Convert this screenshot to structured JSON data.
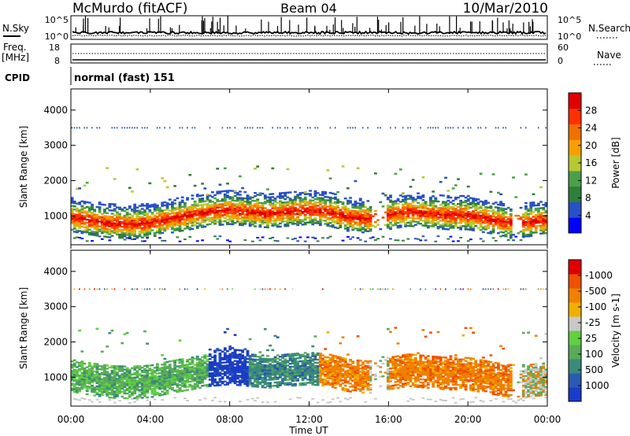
{
  "header": {
    "station": "McMurdo (fitACF)",
    "beam": "Beam 04",
    "date": "10/Mar/2010"
  },
  "top_panels": {
    "nsky_label": "N.Sky",
    "nsearch_label": "N.Search",
    "noise_tick_top": "10^5",
    "noise_tick_bottom": "10^0",
    "freq_label": "Freq.",
    "freq_unit": "[MHz]",
    "freq_ticks": [
      "18",
      "8"
    ],
    "nave_label": "Nave",
    "nave_ticks": [
      "60",
      "0"
    ],
    "cpid_label": "CPID",
    "cpid_value": "normal (fast) 151"
  },
  "chart_data": [
    {
      "type": "heatmap",
      "title": "Power",
      "xlabel": "Time UT",
      "ylabel": "Slant Range [km]",
      "x_ticks": [
        "00:00",
        "04:00",
        "08:00",
        "12:00",
        "16:00",
        "20:00",
        "00:00"
      ],
      "x_range_hours": [
        0,
        24
      ],
      "y_ticks": [
        1000,
        2000,
        3000,
        4000
      ],
      "ylim": [
        180,
        4600
      ],
      "colorbar": {
        "label": "Power [dB]",
        "ticks": [
          "4",
          "8",
          "12",
          "16",
          "20",
          "24",
          "28"
        ],
        "colors": [
          "#0000ff",
          "#2850c8",
          "#2f7f3a",
          "#4aa04a",
          "#b8c830",
          "#f5a000",
          "#f07000",
          "#ff3000",
          "#e00000"
        ]
      },
      "main_echo_band": [
        {
          "x": 0,
          "y": 1000
        },
        {
          "x": 1,
          "y": 900
        },
        {
          "x": 2,
          "y": 820
        },
        {
          "x": 3,
          "y": 800
        },
        {
          "x": 4,
          "y": 830
        },
        {
          "x": 5,
          "y": 950
        },
        {
          "x": 6,
          "y": 1050
        },
        {
          "x": 7,
          "y": 1150
        },
        {
          "x": 8,
          "y": 1200
        },
        {
          "x": 9,
          "y": 1150
        },
        {
          "x": 10,
          "y": 1100
        },
        {
          "x": 11,
          "y": 1150
        },
        {
          "x": 12,
          "y": 1200
        },
        {
          "x": 13,
          "y": 1150
        },
        {
          "x": 14,
          "y": 1000
        },
        {
          "x": 15,
          "y": 950
        },
        {
          "x": 16,
          "y": 1050
        },
        {
          "x": 17,
          "y": 1150
        },
        {
          "x": 18,
          "y": 1100
        },
        {
          "x": 19,
          "y": 1050
        },
        {
          "x": 20,
          "y": 1050
        },
        {
          "x": 21,
          "y": 950
        },
        {
          "x": 22,
          "y": 850
        },
        {
          "x": 23,
          "y": 850
        },
        {
          "x": 24,
          "y": 900
        }
      ]
    },
    {
      "type": "heatmap",
      "title": "Velocity",
      "xlabel": "Time UT",
      "ylabel": "Slant Range [km]",
      "x_ticks": [
        "00:00",
        "04:00",
        "08:00",
        "12:00",
        "16:00",
        "20:00",
        "00:00"
      ],
      "x_range_hours": [
        0,
        24
      ],
      "y_ticks": [
        1000,
        2000,
        3000,
        4000
      ],
      "ylim": [
        180,
        4600
      ],
      "colorbar": {
        "label": "Velocity [m s-1]",
        "ticks": [
          "1000",
          "500",
          "100",
          "25",
          "-25",
          "-100",
          "-500",
          "-1000"
        ],
        "colors": [
          "#1a3cc8",
          "#2a5ab0",
          "#3a8a7a",
          "#5aaa5a",
          "#60d040",
          "#c8c8c8",
          "#f0b000",
          "#f08000",
          "#f05000",
          "#e00000"
        ]
      },
      "velocity_segments": [
        {
          "x0": 0,
          "x1": 7,
          "sign": "positive",
          "level": "100"
        },
        {
          "x0": 7,
          "x1": 9,
          "sign": "positive",
          "level": "1000"
        },
        {
          "x0": 9,
          "x1": 12.5,
          "sign": "positive",
          "level": "500"
        },
        {
          "x0": 12.5,
          "x1": 15,
          "sign": "negative",
          "level": "-100"
        },
        {
          "x0": 16,
          "x1": 22.5,
          "sign": "negative",
          "level": "-500"
        },
        {
          "x0": 22.5,
          "x1": 24,
          "sign": "mixed",
          "level": "25"
        }
      ]
    }
  ]
}
